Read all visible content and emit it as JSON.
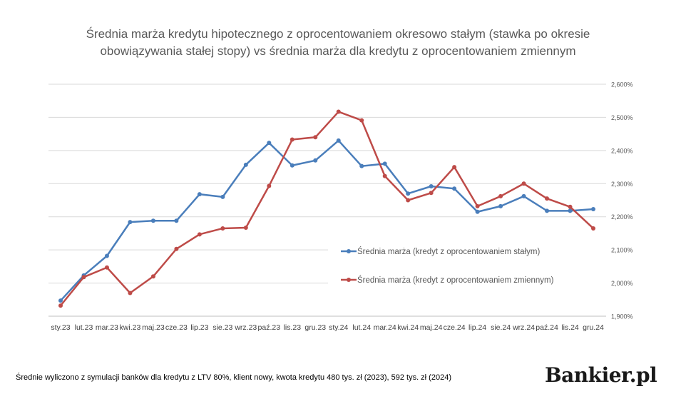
{
  "header": {
    "title_line1": "Średnia marża kredytu hipotecznego z oprocentowaniem okresowo stałym (stawka po okresie",
    "title_line2": "obowiązywania stałej stopy) vs średnia marża dla kredytu z oprocentowaniem zmiennym"
  },
  "footnote": "Średnie wyliczono z symulacji banków dla kredytu z LTV 80%, klient nowy, kwota kredytu 480 tys. zł (2023), 592 tys. zł (2024)",
  "brand": "Bankier.pl",
  "colors": {
    "fixed": "#4a7ebb",
    "variable": "#be4b48",
    "grid": "#d9d9d9",
    "text": "#595959"
  },
  "chart_data": {
    "type": "line",
    "title": "Średnia marża kredytu hipotecznego z oprocentowaniem okresowo stałym (stawka po okresie obowiązywania stałej stopy) vs średnia marża dla kredytu z oprocentowaniem zmiennym",
    "categories": [
      "sty.23",
      "lut.23",
      "mar.23",
      "kwi.23",
      "maj.23",
      "cze.23",
      "lip.23",
      "sie.23",
      "wrz.23",
      "paź.23",
      "lis.23",
      "gru.23",
      "sty.24",
      "lut.24",
      "mar.24",
      "kwi.24",
      "maj.24",
      "cze.24",
      "lip.24",
      "sie.24",
      "wrz.24",
      "paź.24",
      "lis.24",
      "gru.24"
    ],
    "y_ticks": [
      "1,900%",
      "2,000%",
      "2,100%",
      "2,200%",
      "2,300%",
      "2,400%",
      "2,500%",
      "2,600%"
    ],
    "ylim": [
      1.9,
      2.6
    ],
    "y_axis_side": "right",
    "grid": true,
    "legend_position": "inside-right",
    "series": [
      {
        "name": "Średnia marża (kredyt z oprocentowaniem stałym)",
        "color": "#4a7ebb",
        "values": [
          1.947,
          2.023,
          2.082,
          2.184,
          2.188,
          2.188,
          2.268,
          2.26,
          2.357,
          2.423,
          2.355,
          2.37,
          2.43,
          2.353,
          2.36,
          2.27,
          2.292,
          2.285,
          2.215,
          2.232,
          2.262,
          2.218,
          2.218,
          2.223
        ]
      },
      {
        "name": "Średnia marża (kredyt z oprocentowaniem zmiennym)",
        "color": "#be4b48",
        "values": [
          1.932,
          2.018,
          2.047,
          1.97,
          2.02,
          2.103,
          2.147,
          2.165,
          2.167,
          2.293,
          2.433,
          2.44,
          2.517,
          2.491,
          2.323,
          2.25,
          2.272,
          2.35,
          2.232,
          2.262,
          2.3,
          2.255,
          2.23,
          2.165
        ]
      }
    ]
  }
}
